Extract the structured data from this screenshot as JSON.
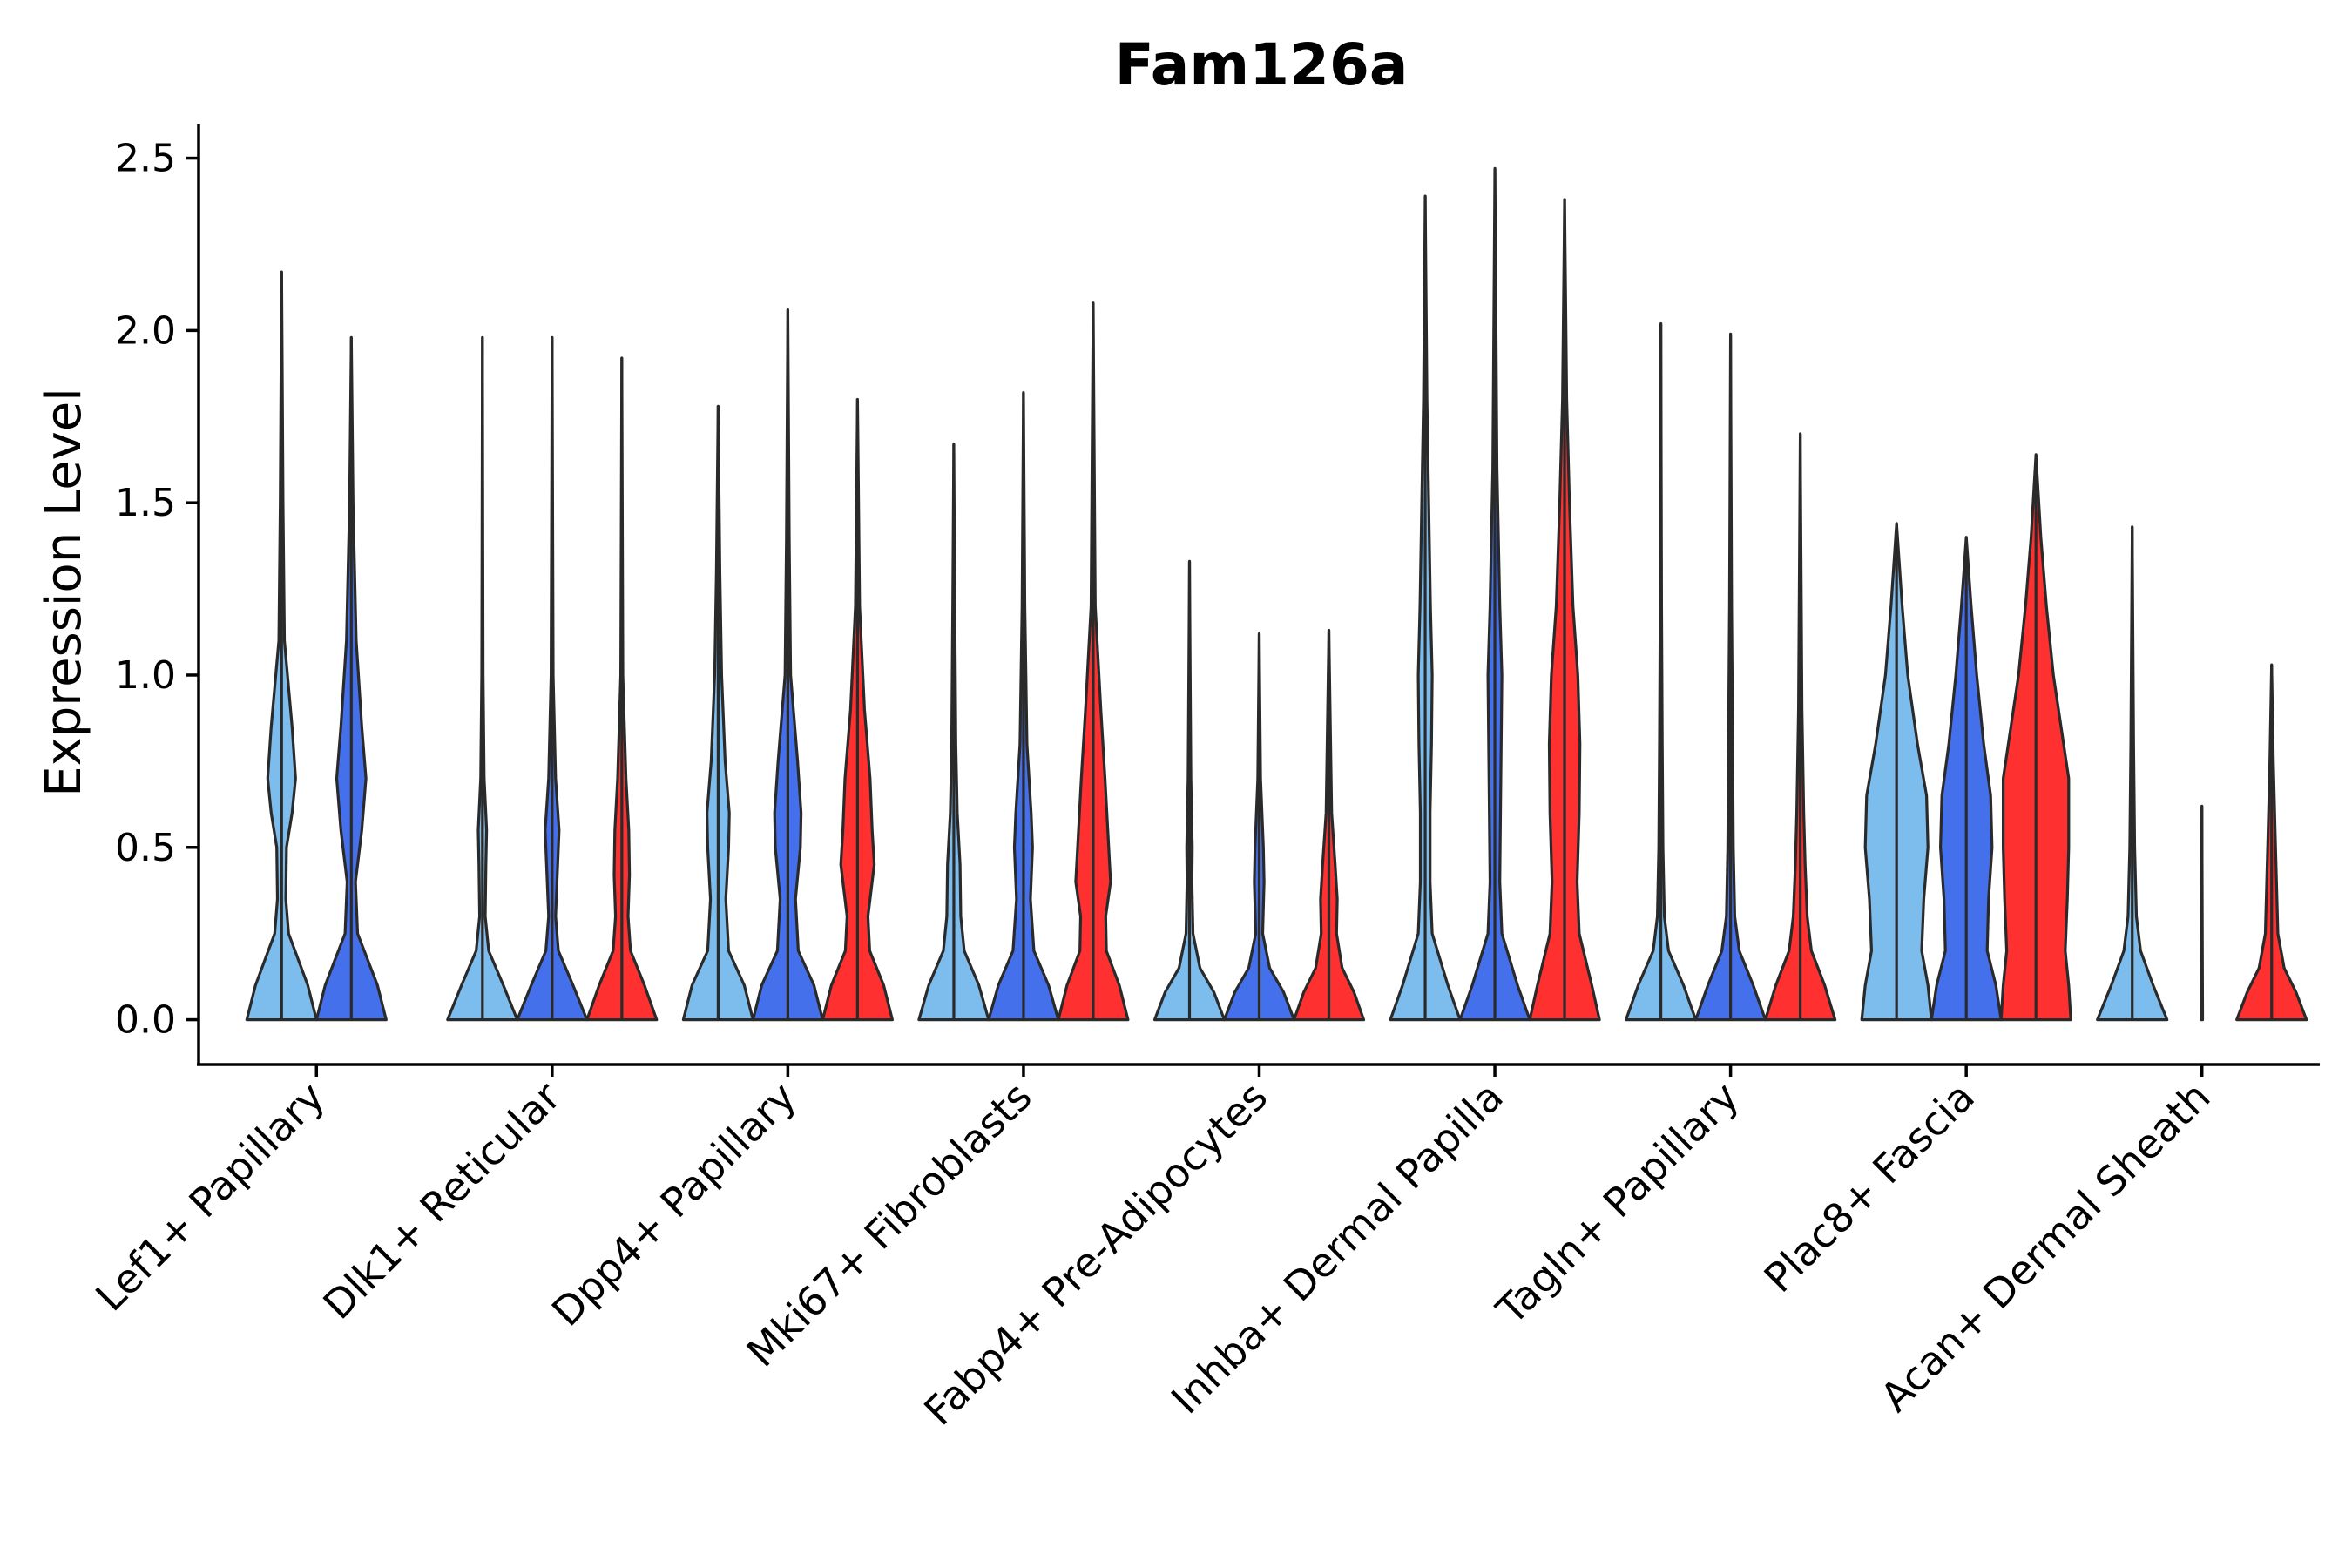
{
  "chart_data": {
    "type": "violin",
    "title": "Fam126a",
    "xlabel": "",
    "ylabel": "Expression Level",
    "ylim": [
      -0.13,
      2.6
    ],
    "yticks": [
      "0.0",
      "0.5",
      "1.0",
      "1.5",
      "2.0",
      "2.5"
    ],
    "legend": "none",
    "colors": {
      "light": "#7DBDED",
      "medium": "#4570EC",
      "red": "#FF3030"
    },
    "categories": [
      "Lef1+ Papillary",
      "Dlk1+ Reticular",
      "Dpp4+ Papillary",
      "Mki67+ Fibroblasts",
      "Fabp4+ Pre-Adipocytes",
      "Inhba+ Dermal Papilla",
      "Tagln+ Papillary",
      "Plac8+ Fascia",
      "Acan+ Dermal Sheath"
    ],
    "violins": [
      {
        "category": "Lef1+ Papillary",
        "group": "light",
        "max": 2.17,
        "shape": [
          [
            0,
            1
          ],
          [
            0.1,
            0.75
          ],
          [
            0.25,
            0.2
          ],
          [
            0.35,
            0.12
          ],
          [
            0.5,
            0.14
          ],
          [
            0.6,
            0.3
          ],
          [
            0.7,
            0.4
          ],
          [
            0.85,
            0.3
          ],
          [
            1.1,
            0.08
          ],
          [
            1.5,
            0.04
          ],
          [
            2.17,
            0
          ]
        ]
      },
      {
        "category": "Lef1+ Papillary",
        "group": "medium",
        "max": 1.98,
        "shape": [
          [
            0,
            1
          ],
          [
            0.1,
            0.75
          ],
          [
            0.25,
            0.18
          ],
          [
            0.4,
            0.12
          ],
          [
            0.55,
            0.3
          ],
          [
            0.7,
            0.42
          ],
          [
            0.85,
            0.3
          ],
          [
            1.1,
            0.14
          ],
          [
            1.5,
            0.05
          ],
          [
            1.98,
            0
          ]
        ]
      },
      {
        "category": "Dlk1+ Reticular",
        "group": "light",
        "max": 1.98,
        "shape": [
          [
            0,
            1
          ],
          [
            0.1,
            0.6
          ],
          [
            0.2,
            0.18
          ],
          [
            0.3,
            0.08
          ],
          [
            0.45,
            0.1
          ],
          [
            0.55,
            0.12
          ],
          [
            0.7,
            0.05
          ],
          [
            1.0,
            0.02
          ],
          [
            1.98,
            0
          ]
        ]
      },
      {
        "category": "Dlk1+ Reticular",
        "group": "medium",
        "max": 1.98,
        "shape": [
          [
            0,
            1
          ],
          [
            0.1,
            0.6
          ],
          [
            0.2,
            0.18
          ],
          [
            0.3,
            0.1
          ],
          [
            0.45,
            0.16
          ],
          [
            0.55,
            0.2
          ],
          [
            0.7,
            0.1
          ],
          [
            1.0,
            0.03
          ],
          [
            1.98,
            0
          ]
        ]
      },
      {
        "category": "Dlk1+ Reticular",
        "group": "red",
        "max": 1.92,
        "shape": [
          [
            0,
            1
          ],
          [
            0.1,
            0.65
          ],
          [
            0.2,
            0.25
          ],
          [
            0.3,
            0.18
          ],
          [
            0.42,
            0.22
          ],
          [
            0.55,
            0.2
          ],
          [
            0.7,
            0.12
          ],
          [
            1.0,
            0.03
          ],
          [
            1.92,
            0
          ]
        ]
      },
      {
        "category": "Dpp4+ Papillary",
        "group": "light",
        "max": 1.78,
        "shape": [
          [
            0,
            1
          ],
          [
            0.1,
            0.75
          ],
          [
            0.2,
            0.3
          ],
          [
            0.35,
            0.22
          ],
          [
            0.5,
            0.3
          ],
          [
            0.6,
            0.32
          ],
          [
            0.75,
            0.2
          ],
          [
            1.0,
            0.1
          ],
          [
            1.3,
            0.05
          ],
          [
            1.78,
            0
          ]
        ]
      },
      {
        "category": "Dpp4+ Papillary",
        "group": "medium",
        "max": 2.06,
        "shape": [
          [
            0,
            1
          ],
          [
            0.1,
            0.75
          ],
          [
            0.2,
            0.3
          ],
          [
            0.35,
            0.22
          ],
          [
            0.5,
            0.36
          ],
          [
            0.6,
            0.38
          ],
          [
            0.75,
            0.28
          ],
          [
            1.0,
            0.08
          ],
          [
            1.4,
            0.04
          ],
          [
            2.06,
            0
          ]
        ]
      },
      {
        "category": "Dpp4+ Papillary",
        "group": "red",
        "max": 1.8,
        "shape": [
          [
            0,
            1
          ],
          [
            0.1,
            0.75
          ],
          [
            0.2,
            0.35
          ],
          [
            0.3,
            0.3
          ],
          [
            0.45,
            0.48
          ],
          [
            0.55,
            0.42
          ],
          [
            0.7,
            0.36
          ],
          [
            0.9,
            0.2
          ],
          [
            1.2,
            0.06
          ],
          [
            1.8,
            0
          ]
        ]
      },
      {
        "category": "Mki67+ Fibroblasts",
        "group": "light",
        "max": 1.67,
        "shape": [
          [
            0,
            1
          ],
          [
            0.1,
            0.72
          ],
          [
            0.2,
            0.3
          ],
          [
            0.3,
            0.2
          ],
          [
            0.45,
            0.18
          ],
          [
            0.6,
            0.1
          ],
          [
            0.8,
            0.06
          ],
          [
            1.2,
            0.03
          ],
          [
            1.67,
            0
          ]
        ]
      },
      {
        "category": "Mki67+ Fibroblasts",
        "group": "medium",
        "max": 1.82,
        "shape": [
          [
            0,
            1
          ],
          [
            0.1,
            0.72
          ],
          [
            0.2,
            0.3
          ],
          [
            0.35,
            0.2
          ],
          [
            0.5,
            0.26
          ],
          [
            0.6,
            0.22
          ],
          [
            0.8,
            0.1
          ],
          [
            1.2,
            0.04
          ],
          [
            1.82,
            0
          ]
        ]
      },
      {
        "category": "Mki67+ Fibroblasts",
        "group": "red",
        "max": 2.08,
        "shape": [
          [
            0,
            1
          ],
          [
            0.1,
            0.75
          ],
          [
            0.2,
            0.38
          ],
          [
            0.3,
            0.36
          ],
          [
            0.4,
            0.5
          ],
          [
            0.55,
            0.42
          ],
          [
            0.7,
            0.34
          ],
          [
            0.9,
            0.22
          ],
          [
            1.2,
            0.06
          ],
          [
            2.08,
            0
          ]
        ]
      },
      {
        "category": "Fabp4+ Pre-Adipocytes",
        "group": "light",
        "max": 1.33,
        "shape": [
          [
            0,
            1
          ],
          [
            0.08,
            0.7
          ],
          [
            0.15,
            0.3
          ],
          [
            0.25,
            0.1
          ],
          [
            0.4,
            0.07
          ],
          [
            0.5,
            0.08
          ],
          [
            0.7,
            0.04
          ],
          [
            1.0,
            0.02
          ],
          [
            1.33,
            0
          ]
        ]
      },
      {
        "category": "Fabp4+ Pre-Adipocytes",
        "group": "medium",
        "max": 1.12,
        "shape": [
          [
            0,
            1
          ],
          [
            0.08,
            0.7
          ],
          [
            0.15,
            0.3
          ],
          [
            0.25,
            0.1
          ],
          [
            0.4,
            0.14
          ],
          [
            0.5,
            0.12
          ],
          [
            0.7,
            0.04
          ],
          [
            1.12,
            0
          ]
        ]
      },
      {
        "category": "Fabp4+ Pre-Adipocytes",
        "group": "red",
        "max": 1.13,
        "shape": [
          [
            0,
            1
          ],
          [
            0.08,
            0.72
          ],
          [
            0.15,
            0.38
          ],
          [
            0.25,
            0.22
          ],
          [
            0.35,
            0.24
          ],
          [
            0.45,
            0.18
          ],
          [
            0.6,
            0.08
          ],
          [
            1.13,
            0
          ]
        ]
      },
      {
        "category": "Inhba+ Dermal Papilla",
        "group": "light",
        "max": 2.39,
        "shape": [
          [
            0,
            1
          ],
          [
            0.1,
            0.65
          ],
          [
            0.25,
            0.2
          ],
          [
            0.4,
            0.14
          ],
          [
            0.6,
            0.14
          ],
          [
            0.8,
            0.18
          ],
          [
            1.0,
            0.2
          ],
          [
            1.2,
            0.15
          ],
          [
            1.5,
            0.1
          ],
          [
            1.8,
            0.05
          ],
          [
            2.39,
            0
          ]
        ]
      },
      {
        "category": "Inhba+ Dermal Papilla",
        "group": "medium",
        "max": 2.47,
        "shape": [
          [
            0,
            1
          ],
          [
            0.1,
            0.65
          ],
          [
            0.25,
            0.2
          ],
          [
            0.4,
            0.14
          ],
          [
            0.6,
            0.16
          ],
          [
            0.8,
            0.18
          ],
          [
            1.0,
            0.2
          ],
          [
            1.2,
            0.14
          ],
          [
            1.6,
            0.06
          ],
          [
            2.47,
            0
          ]
        ]
      },
      {
        "category": "Inhba+ Dermal Papilla",
        "group": "red",
        "max": 2.38,
        "shape": [
          [
            0,
            1
          ],
          [
            0.1,
            0.78
          ],
          [
            0.25,
            0.42
          ],
          [
            0.4,
            0.36
          ],
          [
            0.6,
            0.42
          ],
          [
            0.8,
            0.44
          ],
          [
            1.0,
            0.38
          ],
          [
            1.2,
            0.24
          ],
          [
            1.5,
            0.14
          ],
          [
            1.8,
            0.06
          ],
          [
            2.38,
            0
          ]
        ]
      },
      {
        "category": "Tagln+ Papillary",
        "group": "light",
        "max": 2.02,
        "shape": [
          [
            0,
            1
          ],
          [
            0.1,
            0.65
          ],
          [
            0.2,
            0.22
          ],
          [
            0.3,
            0.1
          ],
          [
            0.5,
            0.06
          ],
          [
            0.8,
            0.04
          ],
          [
            1.2,
            0.02
          ],
          [
            2.02,
            0
          ]
        ]
      },
      {
        "category": "Tagln+ Papillary",
        "group": "medium",
        "max": 1.99,
        "shape": [
          [
            0,
            1
          ],
          [
            0.1,
            0.65
          ],
          [
            0.2,
            0.25
          ],
          [
            0.3,
            0.12
          ],
          [
            0.5,
            0.08
          ],
          [
            0.8,
            0.06
          ],
          [
            1.2,
            0.03
          ],
          [
            1.99,
            0
          ]
        ]
      },
      {
        "category": "Tagln+ Papillary",
        "group": "red",
        "max": 1.7,
        "shape": [
          [
            0,
            1
          ],
          [
            0.1,
            0.7
          ],
          [
            0.2,
            0.32
          ],
          [
            0.3,
            0.2
          ],
          [
            0.45,
            0.14
          ],
          [
            0.6,
            0.1
          ],
          [
            0.9,
            0.05
          ],
          [
            1.7,
            0
          ]
        ]
      },
      {
        "category": "Plac8+ Fascia",
        "group": "light",
        "max": 1.44,
        "shape": [
          [
            0,
            1
          ],
          [
            0.1,
            0.9
          ],
          [
            0.2,
            0.72
          ],
          [
            0.35,
            0.78
          ],
          [
            0.5,
            0.9
          ],
          [
            0.65,
            0.86
          ],
          [
            0.8,
            0.6
          ],
          [
            1.0,
            0.32
          ],
          [
            1.2,
            0.16
          ],
          [
            1.44,
            0
          ]
        ]
      },
      {
        "category": "Plac8+ Fascia",
        "group": "medium",
        "max": 1.4,
        "shape": [
          [
            0,
            1
          ],
          [
            0.1,
            0.85
          ],
          [
            0.2,
            0.6
          ],
          [
            0.35,
            0.64
          ],
          [
            0.5,
            0.74
          ],
          [
            0.65,
            0.7
          ],
          [
            0.8,
            0.5
          ],
          [
            1.0,
            0.3
          ],
          [
            1.2,
            0.14
          ],
          [
            1.4,
            0
          ]
        ]
      },
      {
        "category": "Plac8+ Fascia",
        "group": "red",
        "max": 1.64,
        "shape": [
          [
            0,
            1
          ],
          [
            0.1,
            0.94
          ],
          [
            0.2,
            0.84
          ],
          [
            0.35,
            0.9
          ],
          [
            0.5,
            0.94
          ],
          [
            0.7,
            0.94
          ],
          [
            0.85,
            0.72
          ],
          [
            1.0,
            0.5
          ],
          [
            1.2,
            0.3
          ],
          [
            1.4,
            0.14
          ],
          [
            1.64,
            0
          ]
        ]
      },
      {
        "category": "Acan+ Dermal Sheath",
        "group": "light",
        "max": 1.43,
        "shape": [
          [
            0,
            1
          ],
          [
            0.1,
            0.6
          ],
          [
            0.2,
            0.24
          ],
          [
            0.3,
            0.12
          ],
          [
            0.5,
            0.07
          ],
          [
            0.8,
            0.04
          ],
          [
            1.43,
            0
          ]
        ]
      },
      {
        "category": "Acan+ Dermal Sheath",
        "group": "medium",
        "max": 0.62,
        "shape": [
          [
            0,
            0.02
          ],
          [
            0.62,
            0
          ]
        ]
      },
      {
        "category": "Acan+ Dermal Sheath",
        "group": "red",
        "max": 1.03,
        "shape": [
          [
            0,
            1
          ],
          [
            0.08,
            0.7
          ],
          [
            0.15,
            0.36
          ],
          [
            0.25,
            0.18
          ],
          [
            0.4,
            0.14
          ],
          [
            0.55,
            0.1
          ],
          [
            0.75,
            0.05
          ],
          [
            1.03,
            0
          ]
        ]
      }
    ]
  }
}
